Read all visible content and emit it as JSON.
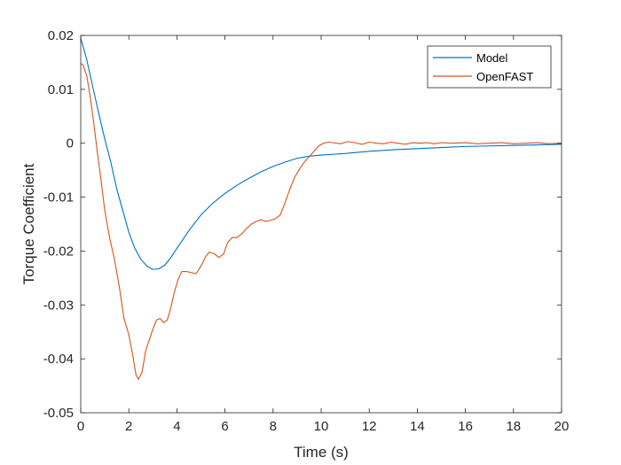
{
  "chart_data": {
    "type": "line",
    "title": "",
    "xlabel": "Time (s)",
    "ylabel": "Torque Coefficient",
    "xlim": [
      0,
      20
    ],
    "ylim": [
      -0.05,
      0.02
    ],
    "xticks": [
      0,
      2,
      4,
      6,
      8,
      10,
      12,
      14,
      16,
      18,
      20
    ],
    "xtick_labels": [
      "0",
      "2",
      "4",
      "6",
      "8",
      "10",
      "12",
      "14",
      "16",
      "18",
      "20"
    ],
    "yticks": [
      -0.05,
      -0.04,
      -0.03,
      -0.02,
      -0.01,
      0,
      0.01,
      0.02
    ],
    "ytick_labels": [
      "-0.05",
      "-0.04",
      "-0.03",
      "-0.02",
      "-0.01",
      "0",
      "0.01",
      "0.02"
    ],
    "grid": false,
    "legend_position": "top-right",
    "series": [
      {
        "name": "Model",
        "color": "#0072BD",
        "x": [
          0,
          0.25,
          0.5,
          0.75,
          1,
          1.25,
          1.5,
          1.75,
          2,
          2.25,
          2.5,
          2.75,
          3,
          3.25,
          3.5,
          3.75,
          4,
          4.5,
          5,
          5.5,
          6,
          6.5,
          7,
          7.5,
          8,
          8.5,
          9,
          9.5,
          10,
          11,
          12,
          13,
          14,
          15,
          16,
          17,
          18,
          19,
          20
        ],
        "y": [
          0.0195,
          0.0155,
          0.0105,
          0.0055,
          0.0008,
          -0.0035,
          -0.0085,
          -0.0125,
          -0.0165,
          -0.0195,
          -0.0215,
          -0.0228,
          -0.0234,
          -0.0233,
          -0.0226,
          -0.0212,
          -0.0195,
          -0.0162,
          -0.0133,
          -0.0111,
          -0.0093,
          -0.0078,
          -0.0065,
          -0.0053,
          -0.0043,
          -0.0035,
          -0.0028,
          -0.0024,
          -0.0022,
          -0.0019,
          -0.0015,
          -0.0012,
          -0.001,
          -0.0008,
          -0.0006,
          -0.0005,
          -0.0004,
          -0.0003,
          -0.0002
        ]
      },
      {
        "name": "OpenFAST",
        "color": "#D95319",
        "x": [
          0,
          0.1,
          0.25,
          0.4,
          0.55,
          0.7,
          0.85,
          1,
          1.2,
          1.4,
          1.6,
          1.8,
          2,
          2.15,
          2.3,
          2.4,
          2.55,
          2.7,
          2.85,
          3,
          3.15,
          3.3,
          3.45,
          3.6,
          3.75,
          3.9,
          4.05,
          4.2,
          4.4,
          4.6,
          4.8,
          5,
          5.2,
          5.35,
          5.55,
          5.75,
          5.95,
          6.1,
          6.3,
          6.5,
          6.7,
          6.9,
          7.1,
          7.3,
          7.5,
          7.7,
          7.9,
          8.1,
          8.3,
          8.5,
          8.7,
          8.9,
          9.1,
          9.3,
          9.5,
          9.7,
          9.9,
          10.1,
          10.3,
          10.5,
          10.8,
          11.1,
          11.4,
          11.7,
          12,
          12.3,
          12.6,
          12.9,
          13.2,
          13.5,
          13.8,
          14.1,
          14.4,
          14.7,
          15,
          15.5,
          16,
          16.5,
          17,
          17.5,
          18,
          18.5,
          19,
          19.5,
          20
        ],
        "y": [
          0.0148,
          0.0145,
          0.0125,
          0.0085,
          0.0035,
          -0.002,
          -0.007,
          -0.0125,
          -0.0175,
          -0.0215,
          -0.0265,
          -0.0325,
          -0.0355,
          -0.039,
          -0.043,
          -0.0438,
          -0.0425,
          -0.0385,
          -0.0365,
          -0.0345,
          -0.0328,
          -0.0325,
          -0.0333,
          -0.0328,
          -0.0305,
          -0.0275,
          -0.0253,
          -0.0238,
          -0.0238,
          -0.024,
          -0.0242,
          -0.0228,
          -0.021,
          -0.0202,
          -0.0205,
          -0.0212,
          -0.0205,
          -0.0185,
          -0.0175,
          -0.0175,
          -0.0168,
          -0.0158,
          -0.015,
          -0.0145,
          -0.0142,
          -0.0145,
          -0.0143,
          -0.014,
          -0.0133,
          -0.011,
          -0.0085,
          -0.0063,
          -0.0048,
          -0.0035,
          -0.0025,
          -0.0015,
          -0.0005,
          0.0,
          0.0002,
          0.0001,
          -0.0001,
          0.0003,
          0.0001,
          -0.0002,
          0.0002,
          0.0,
          -0.0001,
          0.0002,
          0.0,
          -0.0002,
          0.0001,
          0.0,
          0.0001,
          -0.0001,
          0.0001,
          0.0,
          0.0001,
          -0.0001,
          0.0,
          0.0001,
          -0.0001,
          0.0,
          0.0001,
          -0.0001,
          0.0
        ]
      }
    ]
  }
}
